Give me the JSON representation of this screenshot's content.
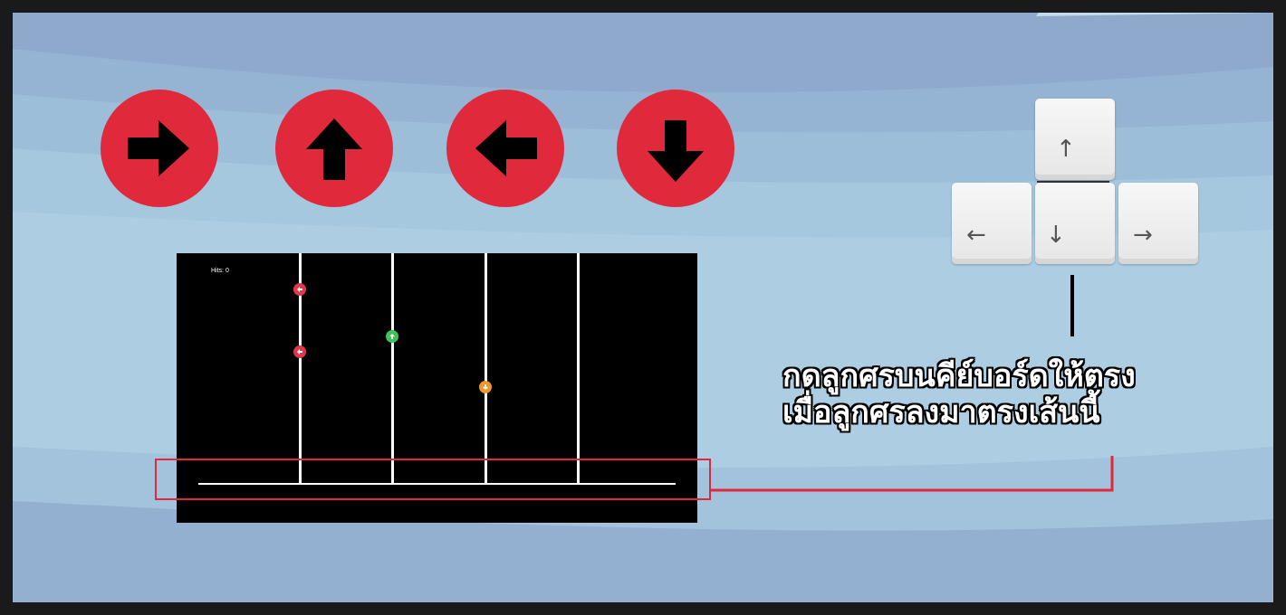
{
  "colors": {
    "button_red": "#e02a3c",
    "arrow_black": "#000000",
    "note_red": "#e0384a",
    "note_green": "#3cc45a",
    "note_orange": "#f0962c",
    "bg_light": "#a9cde0",
    "bg_dark": "#8ea9cc"
  },
  "direction_buttons": [
    {
      "direction": "right",
      "icon": "right-arrow-icon"
    },
    {
      "direction": "up",
      "icon": "up-arrow-icon"
    },
    {
      "direction": "left",
      "icon": "left-arrow-icon"
    },
    {
      "direction": "down",
      "icon": "down-arrow-icon"
    }
  ],
  "game": {
    "hits_label": "Hits: 0",
    "lanes": 4,
    "notes": [
      {
        "lane": "left",
        "color": "red",
        "icon": "left-arrow-icon"
      },
      {
        "lane": "left",
        "color": "red",
        "icon": "left-arrow-icon"
      },
      {
        "lane": "up",
        "color": "green",
        "icon": "up-arrow-icon"
      },
      {
        "lane": "down",
        "color": "orange",
        "icon": "down-arrow-icon"
      }
    ]
  },
  "keyboard": {
    "keys": [
      {
        "name": "up",
        "glyph": "↑"
      },
      {
        "name": "left",
        "glyph": "←"
      },
      {
        "name": "down",
        "glyph": "↓"
      },
      {
        "name": "right",
        "glyph": "→"
      }
    ]
  },
  "instruction": {
    "line1": "กดลูกศรบนคีย์บอร์ดให้ตรง",
    "line2": "เมื่อลูกศรลงมาตรงเส้นนี้"
  }
}
